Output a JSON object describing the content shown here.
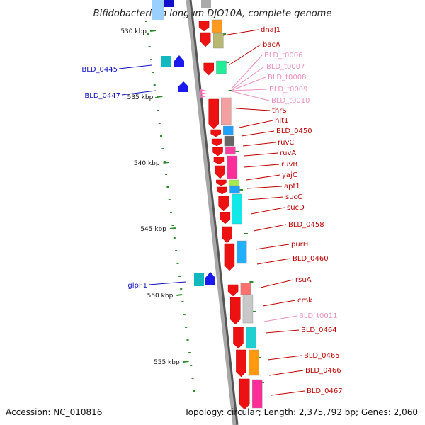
{
  "title": "Bifidobacterium longum DJO10A, complete genome",
  "footer": {
    "accession": "Accession: NC_010816",
    "topology": "Topology: circular; Length: 2,375,792 bp; Genes: 2,060"
  },
  "colors": {
    "backbone": "#9a9a9a",
    "tick": "#2e8b2e",
    "label_red": "#c00000",
    "label_pink": "#ee8fbf",
    "label_blue": "#1010c0"
  },
  "kbp_marks": [
    {
      "label": "530 kbp",
      "kbp": 530
    },
    {
      "label": "535 kbp",
      "kbp": 535
    },
    {
      "label": "540 kbp",
      "kbp": 540
    },
    {
      "label": "545 kbp",
      "kbp": 545
    },
    {
      "label": "550 kbp",
      "kbp": 550
    },
    {
      "label": "555 kbp",
      "kbp": 555
    }
  ],
  "right_labels": [
    {
      "name": "dnaJ1",
      "type": "gene"
    },
    {
      "name": "bacA",
      "type": "gene"
    },
    {
      "name": "BLD_t0006",
      "type": "trna"
    },
    {
      "name": "BLD_t0007",
      "type": "trna"
    },
    {
      "name": "BLD_t0008",
      "type": "trna"
    },
    {
      "name": "BLD_t0009",
      "type": "trna"
    },
    {
      "name": "BLD_t0010",
      "type": "trna"
    },
    {
      "name": "thrS",
      "type": "gene"
    },
    {
      "name": "hit1",
      "type": "gene"
    },
    {
      "name": "BLD_0450",
      "type": "gene"
    },
    {
      "name": "ruvC",
      "type": "gene"
    },
    {
      "name": "ruvA",
      "type": "gene"
    },
    {
      "name": "ruvB",
      "type": "gene"
    },
    {
      "name": "yajC",
      "type": "gene"
    },
    {
      "name": "apt1",
      "type": "gene"
    },
    {
      "name": "sucC",
      "type": "gene"
    },
    {
      "name": "sucD",
      "type": "gene"
    },
    {
      "name": "BLD_0458",
      "type": "gene"
    },
    {
      "name": "purH",
      "type": "gene"
    },
    {
      "name": "BLD_0460",
      "type": "gene"
    },
    {
      "name": "rsuA",
      "type": "gene"
    },
    {
      "name": "cmk",
      "type": "gene"
    },
    {
      "name": "BLD_t0011",
      "type": "trna"
    },
    {
      "name": "BLD_0464",
      "type": "gene"
    },
    {
      "name": "BLD_0465",
      "type": "gene"
    },
    {
      "name": "BLD_0466",
      "type": "gene"
    },
    {
      "name": "BLD_0467",
      "type": "gene"
    }
  ],
  "left_labels": [
    {
      "name": "BLD_0445"
    },
    {
      "name": "BLD_0447"
    },
    {
      "name": "glpF1"
    }
  ]
}
